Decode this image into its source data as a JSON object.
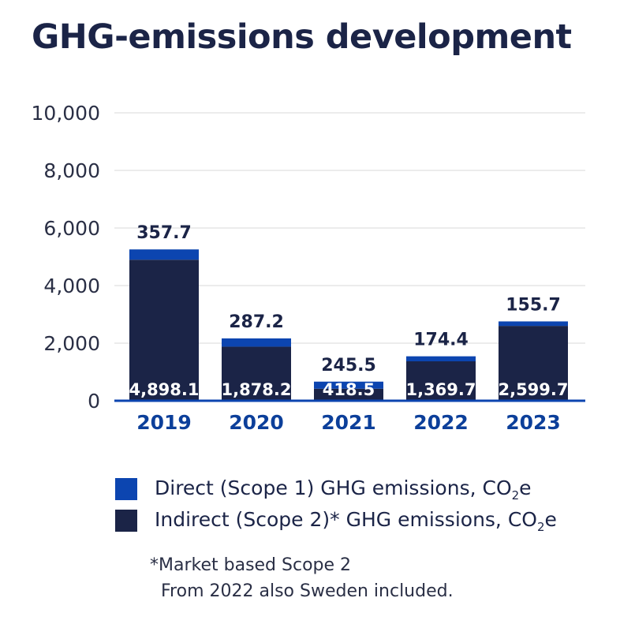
{
  "chart_data": {
    "type": "bar",
    "stacked": true,
    "title": "GHG-emissions development",
    "categories": [
      "2019",
      "2020",
      "2021",
      "2022",
      "2023"
    ],
    "series": [
      {
        "name": "Indirect (Scope 2)* GHG emissions, CO2e",
        "color": "#1b2447",
        "values": [
          4898.1,
          1878.2,
          418.5,
          1369.7,
          2599.7
        ],
        "labels": [
          "4,898.1",
          "1,878.2",
          "418.5",
          "1,369.7",
          "2,599.7"
        ]
      },
      {
        "name": "Direct (Scope 1) GHG emissions, CO2e",
        "color": "#0c45b0",
        "values": [
          357.7,
          287.2,
          245.5,
          174.4,
          155.7
        ],
        "labels": [
          "357.7",
          "287.2",
          "245.5",
          "174.4",
          "155.7"
        ]
      }
    ],
    "ylim": [
      0,
      10000
    ],
    "yticks": [
      0,
      2000,
      4000,
      6000,
      8000,
      10000
    ],
    "ytick_labels": [
      "0",
      "2,000",
      "4,000",
      "6,000",
      "8,000",
      "10,000"
    ],
    "grid": true,
    "legend_position": "bottom"
  },
  "legend": {
    "direct": {
      "text": "Direct (Scope 1) GHG emissions, CO",
      "sub": "2",
      "suffix": "e"
    },
    "indirect": {
      "text": "Indirect (Scope 2)* GHG emissions, CO",
      "sub": "2",
      "suffix": "e"
    }
  },
  "footnote": {
    "line1": "*Market based Scope 2",
    "line2": "From 2022 also Sweden included."
  }
}
